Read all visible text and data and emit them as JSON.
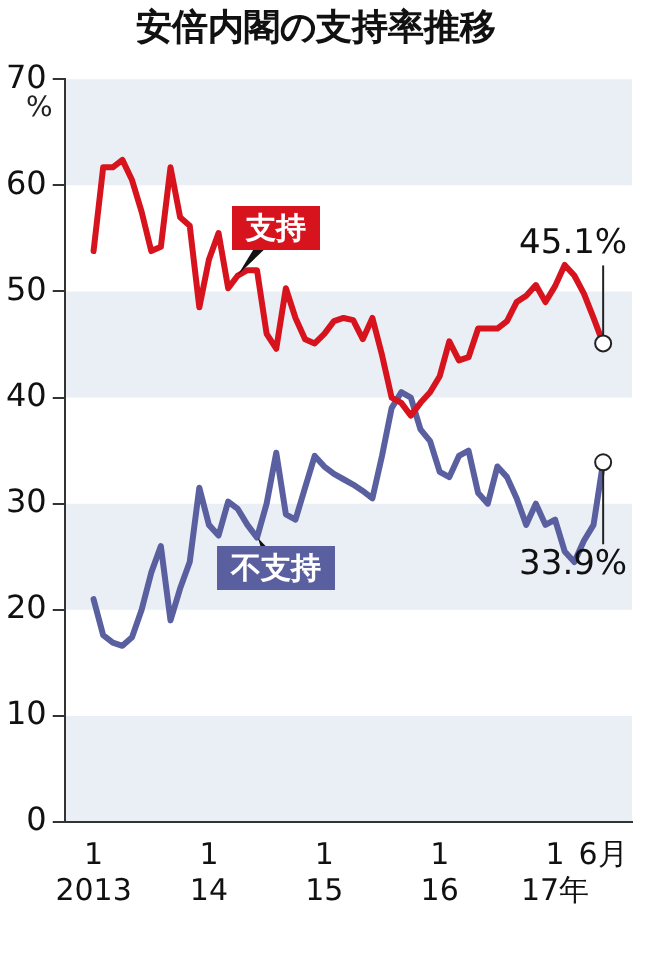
{
  "chart_data": {
    "type": "line",
    "title": "安倍内閣の支持率推移",
    "ylabel": "%",
    "x": [
      "2013-01",
      "2013-02",
      "2013-03",
      "2013-04",
      "2013-05",
      "2013-06",
      "2013-07",
      "2013-08",
      "2013-09",
      "2013-10",
      "2013-11",
      "2013-12",
      "2014-01",
      "2014-02",
      "2014-03",
      "2014-04",
      "2014-05",
      "2014-06",
      "2014-07",
      "2014-08",
      "2014-09",
      "2014-10",
      "2014-11",
      "2014-12",
      "2015-01",
      "2015-02",
      "2015-03",
      "2015-04",
      "2015-05",
      "2015-06",
      "2015-07",
      "2015-08",
      "2015-09",
      "2015-10",
      "2015-11",
      "2015-12",
      "2016-01",
      "2016-02",
      "2016-03",
      "2016-04",
      "2016-05",
      "2016-06",
      "2016-07",
      "2016-08",
      "2016-09",
      "2016-10",
      "2016-11",
      "2016-12",
      "2017-01",
      "2017-02",
      "2017-03",
      "2017-04",
      "2017-05",
      "2017-06"
    ],
    "series": [
      {
        "name": "支持",
        "color": "#d7141e",
        "values": [
          53.8,
          61.7,
          61.7,
          62.4,
          60.5,
          57.5,
          53.8,
          54.2,
          61.7,
          57,
          56.2,
          48.5,
          53,
          55.5,
          50.3,
          51.5,
          52,
          52,
          46,
          44.6,
          50.3,
          47.5,
          45.5,
          45.1,
          46,
          47.2,
          47.5,
          47.3,
          45.5,
          47.5,
          44,
          40,
          39.5,
          38.3,
          39.5,
          40.5,
          42,
          45.3,
          43.5,
          43.8,
          46.5,
          46.5,
          46.5,
          47.2,
          49,
          49.6,
          50.6,
          49,
          50.5,
          52.5,
          51.5,
          49.8,
          47.5,
          45.1
        ]
      },
      {
        "name": "不支持",
        "color": "#5a5fa0",
        "values": [
          21,
          17.6,
          16.9,
          16.6,
          17.4,
          20,
          23.5,
          26,
          19,
          22,
          24.5,
          31.5,
          28,
          27,
          30.2,
          29.5,
          28,
          26.8,
          30,
          34.8,
          29,
          28.5,
          31.5,
          34.5,
          33.5,
          32.8,
          32.3,
          31.8,
          31.2,
          30.5,
          34.5,
          39,
          40.5,
          40,
          37,
          35.9,
          33,
          32.5,
          34.5,
          35,
          31,
          30,
          33.5,
          32.5,
          30.5,
          28,
          30,
          28,
          28.5,
          25.5,
          24.5,
          26.5,
          28,
          33.9
        ]
      }
    ],
    "xlim": [
      "2012-10",
      "2017-09"
    ],
    "xticks": [
      {
        "value": "2013-01",
        "label": "1\n2013"
      },
      {
        "value": "2014-01",
        "label": "1\n14"
      },
      {
        "value": "2015-01",
        "label": "1\n15"
      },
      {
        "value": "2016-01",
        "label": "1\n16"
      },
      {
        "value": "2017-01",
        "label": "1\n17年"
      },
      {
        "value": "2017-06",
        "label": "6月"
      }
    ],
    "ylim": [
      0,
      70
    ],
    "yticks": [
      0,
      10,
      20,
      30,
      40,
      50,
      60,
      70
    ],
    "legend": false,
    "marker": "none",
    "line_style": "solid",
    "annotations": [
      {
        "text": "45.1%",
        "x": "2017-06",
        "y": 45.1
      },
      {
        "text": "33.9%",
        "x": "2017-06",
        "y": 33.9
      }
    ]
  }
}
